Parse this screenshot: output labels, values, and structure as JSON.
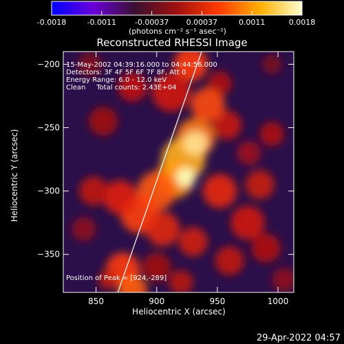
{
  "colorbar": {
    "ticks": [
      "-0.0018",
      "-0.0011",
      "-0.00037",
      "0.00037",
      "0.0011",
      "0.0018"
    ],
    "units": "(photons cm⁻² s⁻¹ asec⁻²)",
    "colors": [
      "#0000ff",
      "#6a00d8",
      "#3a1030",
      "#a01010",
      "#ff3a00",
      "#ffb000",
      "#ffffd0"
    ]
  },
  "info": {
    "time_range": "15-May-2002 04:39:16.000 to 04:44:56.000",
    "detectors": "Detectors: 3F 4F 5F 6F 7F 8F, Att 0",
    "energy": "Energy Range: 6.0 - 12.0 keV",
    "clean": "Clean     Total counts: 2.43E+04",
    "peak": "Position of Peak = [924,-289]"
  },
  "timestamp": "29-Apr-2022 04:57",
  "chart_data": {
    "type": "heatmap",
    "title": "Reconstructed RHESSI Image",
    "xlabel": "Heliocentric X (arcsec)",
    "ylabel": "Heliocentric Y (arcsec)",
    "xlim": [
      823,
      1013
    ],
    "ylim": [
      -380,
      -190
    ],
    "xticks": [
      850,
      900,
      950,
      1000
    ],
    "yticks": [
      -200,
      -250,
      -300,
      -350
    ],
    "xtick_labels": [
      "850",
      "900",
      "950",
      "1000"
    ],
    "ytick_labels": [
      "−200",
      "−250",
      "−300",
      "−350"
    ],
    "peak": [
      924,
      -289
    ],
    "limb_line": [
      [
        868,
        -380
      ],
      [
        937,
        -190
      ]
    ],
    "value_range": [
      -0.0018,
      0.0018
    ],
    "grid": false
  }
}
